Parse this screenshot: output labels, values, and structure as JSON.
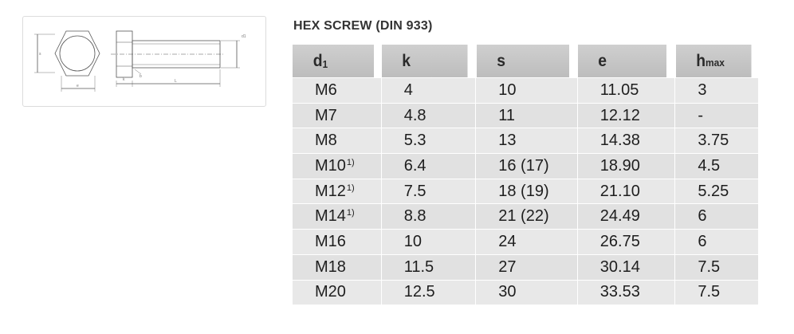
{
  "title": "HEX SCREW (DIN 933)",
  "drawing": {
    "labels": {
      "s": "s",
      "e": "e",
      "k": "k",
      "b": "b",
      "L": "L",
      "d1": "d1"
    }
  },
  "table": {
    "headers": {
      "d1_main": "d",
      "d1_sub": "1",
      "k": "k",
      "s": "s",
      "e": "e",
      "h_main": "h",
      "h_sub": "max"
    },
    "footnote_mark": "1)",
    "rows": [
      {
        "d1": "M6",
        "fn": "",
        "k": "4",
        "s": "10",
        "e": "11.05",
        "h": "3"
      },
      {
        "d1": "M7",
        "fn": "",
        "k": "4.8",
        "s": "11",
        "e": "12.12",
        "h": "-"
      },
      {
        "d1": "M8",
        "fn": "",
        "k": "5.3",
        "s": "13",
        "e": "14.38",
        "h": "3.75"
      },
      {
        "d1": "M10",
        "fn": "1)",
        "k": "6.4",
        "s": "16 (17)",
        "e": "18.90",
        "h": "4.5"
      },
      {
        "d1": "M12",
        "fn": "1)",
        "k": "7.5",
        "s": "18 (19)",
        "e": "21.10",
        "h": "5.25"
      },
      {
        "d1": "M14",
        "fn": "1)",
        "k": "8.8",
        "s": "21 (22)",
        "e": "24.49",
        "h": "6"
      },
      {
        "d1": "M16",
        "fn": "",
        "k": "10",
        "s": "24",
        "e": "26.75",
        "h": "6"
      },
      {
        "d1": "M18",
        "fn": "",
        "k": "11.5",
        "s": "27",
        "e": "30.14",
        "h": "7.5"
      },
      {
        "d1": "M20",
        "fn": "",
        "k": "12.5",
        "s": "30",
        "e": "33.53",
        "h": "7.5"
      }
    ]
  }
}
